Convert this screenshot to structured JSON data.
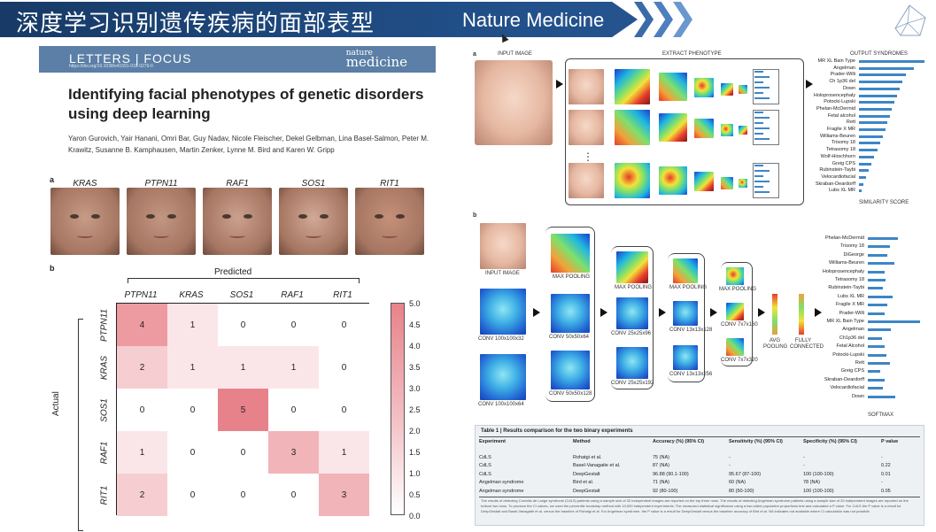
{
  "banner": {
    "title": "深度学习识别遗传疾病的面部表型",
    "subtitle": "Nature Medicine"
  },
  "paper": {
    "section": "LETTERS | FOCUS",
    "doi": "https://doi.org/10.1038/s41591-018-0279-0",
    "journal_small": "nature",
    "journal_big": "medicine",
    "title": "Identifying facial phenotypes of genetic disorders using deep learning",
    "authors": "Yaron Gurovich, Yair Hanani, Omri Bar, Guy Nadav, Nicole Fleischer, Dekel Gelbman, Lina Basel-Salmon, Peter M. Krawitz, Susanne B. Kamphausen, Martin Zenker, Lynne M. Bird and Karen W. Gripp",
    "panel_a": "a",
    "panel_b": "b",
    "genes": [
      "KRAS",
      "PTPN11",
      "RAF1",
      "SOS1",
      "RIT1"
    ],
    "predicted_label": "Predicted",
    "actual_label": "Actual",
    "columns": [
      "PTPN11",
      "KRAS",
      "SOS1",
      "RAF1",
      "RIT1"
    ],
    "rows": [
      "PTPN11",
      "KRAS",
      "SOS1",
      "RAF1",
      "RIT1"
    ],
    "matrix": [
      [
        4,
        1,
        0,
        0,
        0
      ],
      [
        2,
        1,
        1,
        1,
        0
      ],
      [
        0,
        0,
        5,
        0,
        0
      ],
      [
        1,
        0,
        0,
        3,
        1
      ],
      [
        2,
        0,
        0,
        0,
        3
      ]
    ],
    "colorbar_ticks": [
      "5.0",
      "4.5",
      "4.0",
      "3.5",
      "3.0",
      "2.5",
      "2.0",
      "1.5",
      "1.0",
      "0.5",
      "0.0"
    ],
    "colors": {
      "cell_max": "#e8828a",
      "cell_min": "#ffffff",
      "header": "#5b7fa6"
    }
  },
  "figure": {
    "a": {
      "label": "a",
      "input_image": "INPUT IMAGE",
      "extract_phenotype": "EXTRACT PHENOTYPE",
      "output_syndromes": "OUTPUT SYNDROMES",
      "similarity_score": "SIMILARITY SCORE",
      "syndromes": [
        "MR XL Bain Type",
        "Angelman",
        "Prader-Willi",
        "Ch 1p36 del",
        "Down",
        "Holoprosencephaly",
        "Potocki-Lupski",
        "Phelan-McDermid",
        "Fetal alcohol",
        "Rett",
        "Fragile X MR",
        "Williams-Beuren",
        "Trisomy 18",
        "Tetrasomy 18",
        "Wolf-Hirschhorn",
        "Greig CPS",
        "Rubinstein-Taybi",
        "Velocardiofacial",
        "Skraban-Deardorff",
        "Lubs XL MR"
      ],
      "scores": [
        0.98,
        0.82,
        0.7,
        0.64,
        0.6,
        0.56,
        0.52,
        0.49,
        0.46,
        0.42,
        0.39,
        0.35,
        0.31,
        0.27,
        0.23,
        0.19,
        0.15,
        0.11,
        0.07,
        0.04
      ],
      "dots": "⋮"
    },
    "b": {
      "label": "b",
      "input_image": "INPUT IMAGE",
      "max_pooling": "MAX POOLING",
      "conv_labels": [
        "CONV 100x100x32",
        "CONV 100x100x64",
        "CONV 50x50x64",
        "CONV 50x50x128",
        "CONV 25x25x96",
        "CONV 25x25x192",
        "CONV 13x13x128",
        "CONV 13x13x256",
        "CONV 7x7x160",
        "CONV 7x7x320"
      ],
      "avg_pooling": "AVG POOLING",
      "fully_connected": "FULLY CONNECTED",
      "softmax": "SOFTMAX",
      "syndromes": [
        "Phelan-McDermid",
        "Trisomy 18",
        "DiGeorge",
        "Williams-Beuren",
        "Holoprosencephaly",
        "Tetrasomy 18",
        "Rubinstein-Taybi",
        "Lubs XL MR",
        "Fragile X MR",
        "Prader-Willi",
        "MR XL Bain Type",
        "Angelman",
        "Ch1p36 del",
        "Fetal Alcohol",
        "Potocki-Lupski",
        "Rett",
        "Greig CPS",
        "Skraban-Deardorff",
        "Velocardiofacial",
        "Down"
      ],
      "scores": [
        0.55,
        0.4,
        0.35,
        0.48,
        0.3,
        0.33,
        0.28,
        0.45,
        0.36,
        0.3,
        0.95,
        0.42,
        0.25,
        0.3,
        0.34,
        0.4,
        0.22,
        0.3,
        0.27,
        0.5
      ]
    },
    "table": {
      "title": "Table 1 | Results comparison for the two binary experiments",
      "headers": [
        "Experiment",
        "Method",
        "Accuracy (%) (95% CI)",
        "Sensitivity (%) (95% CI)",
        "Specificity (%) (95% CI)",
        "P value"
      ],
      "rows": [
        [
          "CdLS",
          "Rohatgi et al.",
          "75 (NA)",
          "-",
          "-",
          "-"
        ],
        [
          "CdLS",
          "Basel-Vanagaite et al.",
          "87 (NA)",
          "-",
          "-",
          "0.22"
        ],
        [
          "CdLS",
          "DeepGestalt",
          "96.88 (90.1-100)",
          "95.67 (87-100)",
          "100 (100-100)",
          "0.01"
        ],
        [
          "Angelman syndrome",
          "Bird et al.",
          "71 (NA)",
          "60 (NA)",
          "78 (NA)",
          "-"
        ],
        [
          "Angelman syndrome",
          "DeepGestalt",
          "92 (80-100)",
          "80 (50-100)",
          "100 (100-100)",
          "0.05"
        ]
      ],
      "note": "The results of detecting Cornelia de Lange syndrome (CdLS) patients using a sample size of 32 independent images are reported on the top three rows. The results of detecting Angelman syndrome patients using a sample size of 25 independent images are reported on the bottom two rows. To produce the CI values, we used the percentile bootstrap method with 10,000 independent experiments. The measured statistical significance using a two-sided population proportions test and calculated a P value. For CdLS the P value is a result for DeepGestalt and Basel-Vanagaite et al. versus the baseline of Rohatgi et al. For Angelman syndrome, the P value is a result for DeepGestalt versus the baseline accuracy of Bird et al. NA indicates not available where CI calculation was not possible."
    }
  }
}
